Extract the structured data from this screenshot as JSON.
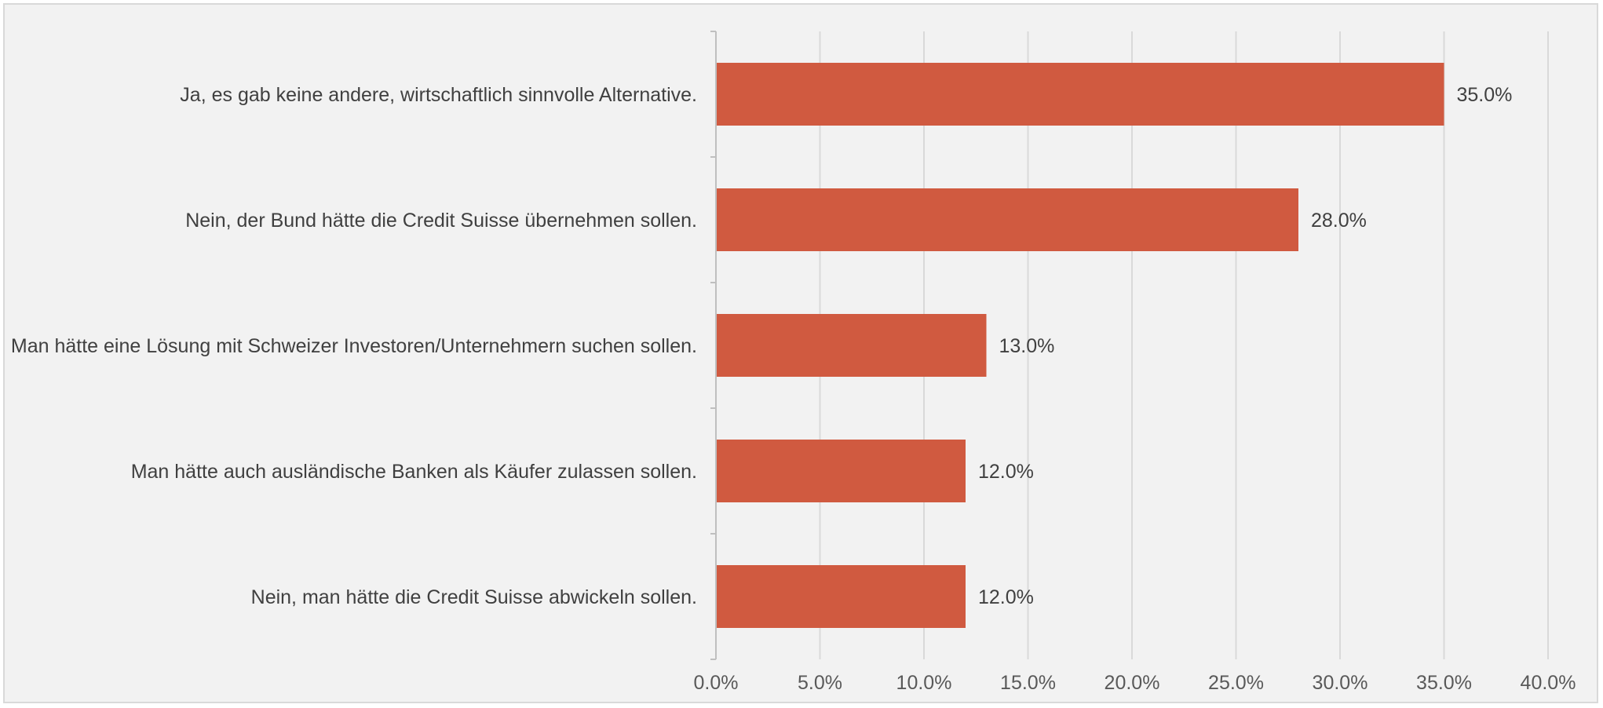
{
  "chart_data": {
    "type": "bar",
    "orientation": "horizontal",
    "categories": [
      "Ja, es gab keine andere, wirtschaftlich sinnvolle Alternative.",
      "Nein, der Bund hätte die Credit Suisse übernehmen sollen.",
      "Man hätte eine Lösung mit Schweizer Investoren/Unternehmern suchen sollen.",
      "Man hätte auch ausländische Banken als Käufer zulassen sollen.",
      "Nein, man hätte die Credit Suisse abwickeln sollen."
    ],
    "values": [
      35.0,
      28.0,
      13.0,
      12.0,
      12.0
    ],
    "value_labels": [
      "35.0%",
      "28.0%",
      "13.0%",
      "12.0%",
      "12.0%"
    ],
    "xlim": [
      0,
      40
    ],
    "xticks": [
      0,
      5,
      10,
      15,
      20,
      25,
      30,
      35,
      40
    ],
    "xtick_labels": [
      "0.0%",
      "5.0%",
      "10.0%",
      "15.0%",
      "20.0%",
      "25.0%",
      "30.0%",
      "35.0%",
      "40.0%"
    ],
    "grid": true,
    "legend": "none",
    "title": "",
    "xlabel": "",
    "ylabel": "",
    "colors": {
      "bar": "#d05a40",
      "grid": "#d9d9d9",
      "axis": "#bfbfbf",
      "background": "#f2f2f2"
    }
  }
}
